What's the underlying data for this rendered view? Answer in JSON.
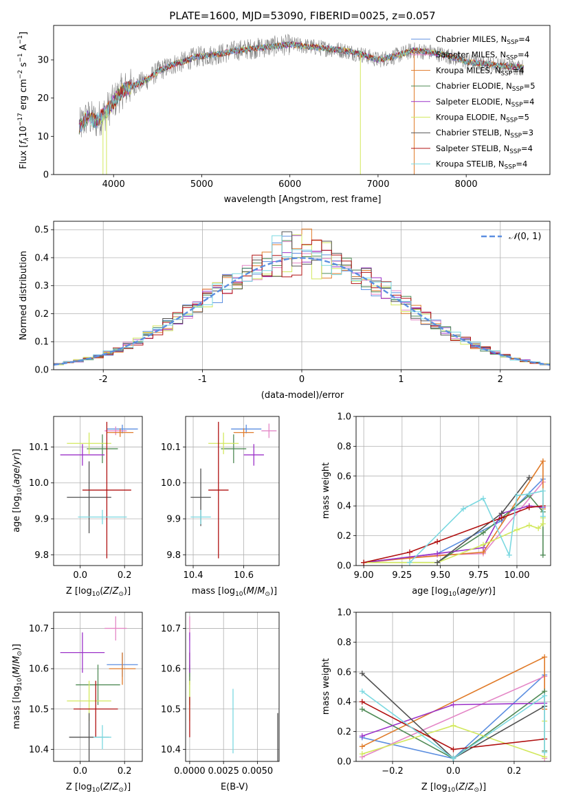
{
  "figure_title": "PLATE=1600, MJD=53090, FIBERID=0025, z=0.057",
  "colors": {
    "chabrier_miles": "#5b8ee0",
    "salpeter_miles": "#e486c6",
    "kroupa_miles": "#e07a28",
    "chabrier_elodie": "#4f8a55",
    "salpeter_elodie": "#9b30c8",
    "kroupa_elodie": "#d2e85c",
    "chabrier_stelib": "#505050",
    "salpeter_stelib": "#b01010",
    "kroupa_stelib": "#7ad8e0",
    "observed": "#808080",
    "gaussian": "#5b8ee0",
    "grid": "#b0b0b0"
  },
  "chart_data": [
    {
      "type": "line",
      "panel": "spectrum",
      "xlabel": "wavelength [Angstrom, rest frame]",
      "ylabel": "Flux [f_λ 10^-17 erg cm^-2 s^-1 A^-1]",
      "xlim": [
        3320,
        8950
      ],
      "ylim": [
        0,
        39
      ],
      "xticks": [
        4000,
        5000,
        6000,
        7000,
        8000
      ],
      "yticks": [
        0,
        10,
        20,
        30
      ],
      "grid": false,
      "legend_position": "top-right",
      "continuum_x": [
        3600,
        3700,
        3800,
        3900,
        4000,
        4100,
        4200,
        4300,
        4400,
        4500,
        4600,
        4700,
        4800,
        4900,
        5000,
        5200,
        5400,
        5600,
        5800,
        6000,
        6200,
        6400,
        6600,
        6800,
        7000,
        7200,
        7400,
        7600,
        7800,
        8000,
        8200,
        8400,
        8650
      ],
      "continuum_y": [
        12,
        15,
        14,
        16,
        19,
        22,
        23,
        24,
        25,
        27,
        28,
        29,
        29.5,
        30.5,
        31,
        31.5,
        32.5,
        33,
        33.5,
        34,
        33.5,
        33,
        32.5,
        31.5,
        30,
        31,
        32.5,
        32,
        31,
        29.5,
        29,
        28.5,
        28
      ],
      "legend": [
        {
          "label": "Chabrier MILES, N",
          "sub": "SSP",
          "suffix": "=4",
          "color_key": "chabrier_miles"
        },
        {
          "label": "Salpeter MILES, N",
          "sub": "SSP",
          "suffix": "=4",
          "color_key": "salpeter_miles"
        },
        {
          "label": "Kroupa MILES, N",
          "sub": "SSP",
          "suffix": "=4",
          "color_key": "kroupa_miles"
        },
        {
          "label": "Chabrier ELODIE, N",
          "sub": "SSP",
          "suffix": "=5",
          "color_key": "chabrier_elodie"
        },
        {
          "label": "Salpeter ELODIE, N",
          "sub": "SSP",
          "suffix": "=4",
          "color_key": "salpeter_elodie"
        },
        {
          "label": "Kroupa ELODIE, N",
          "sub": "SSP",
          "suffix": "=5",
          "color_key": "kroupa_elodie"
        },
        {
          "label": "Chabrier STELIB, N",
          "sub": "SSP",
          "suffix": "=3",
          "color_key": "chabrier_stelib"
        },
        {
          "label": "Salpeter STELIB, N",
          "sub": "SSP",
          "suffix": "=4",
          "color_key": "salpeter_stelib"
        },
        {
          "label": "Kroupa STELIB, N",
          "sub": "SSP",
          "suffix": "=4",
          "color_key": "kroupa_stelib"
        }
      ]
    },
    {
      "type": "histogram",
      "panel": "residuals",
      "xlabel": "(data-model)/error",
      "ylabel": "Normed distribution",
      "xlim": [
        -2.5,
        2.5
      ],
      "ylim": [
        0,
        0.53
      ],
      "xticks": [
        -2,
        -1,
        0,
        1,
        2
      ],
      "yticks": [
        0.0,
        0.1,
        0.2,
        0.3,
        0.4,
        0.5
      ],
      "grid": true,
      "legend_position": "top-right",
      "legend_label": "N(0,1)",
      "bin_width": 0.1,
      "series_order": [
        "chabrier_miles",
        "salpeter_miles",
        "kroupa_miles",
        "chabrier_elodie",
        "salpeter_elodie",
        "kroupa_elodie",
        "chabrier_stelib",
        "salpeter_stelib",
        "kroupa_stelib"
      ]
    },
    {
      "type": "scatter",
      "panel": "age_vs_Z",
      "xlabel": "Z [log10(Z/Z☉)]",
      "ylabel": "age [log10(age/yr)]",
      "xlim": [
        -0.12,
        0.28
      ],
      "ylim": [
        9.77,
        10.185
      ],
      "xticks": [
        0.0,
        0.2
      ],
      "yticks": [
        9.8,
        9.9,
        10.0,
        10.1
      ],
      "grid": true,
      "points": [
        {
          "x": 0.19,
          "xerr": 0.07,
          "y": 10.15,
          "yerr": 0.012,
          "c": "chabrier_miles"
        },
        {
          "x": 0.16,
          "xerr": 0.05,
          "y": 10.145,
          "yerr": 0.012,
          "c": "salpeter_miles"
        },
        {
          "x": 0.18,
          "xerr": 0.06,
          "y": 10.14,
          "yerr": 0.012,
          "c": "kroupa_miles"
        },
        {
          "x": 0.1,
          "xerr": 0.07,
          "y": 10.095,
          "yerr": 0.04,
          "c": "chabrier_elodie"
        },
        {
          "x": 0.01,
          "xerr": 0.1,
          "y": 10.078,
          "yerr": 0.03,
          "c": "salpeter_elodie"
        },
        {
          "x": 0.04,
          "xerr": 0.1,
          "y": 10.11,
          "yerr": 0.03,
          "c": "kroupa_elodie"
        },
        {
          "x": 0.04,
          "xerr": 0.1,
          "y": 9.96,
          "yerr": 0.1,
          "c": "chabrier_stelib"
        },
        {
          "x": 0.12,
          "xerr": 0.11,
          "y": 9.98,
          "yerr": 0.19,
          "c": "salpeter_stelib"
        },
        {
          "x": 0.1,
          "xerr": 0.11,
          "y": 9.905,
          "yerr": 0.02,
          "c": "kroupa_stelib"
        }
      ]
    },
    {
      "type": "scatter",
      "panel": "age_vs_mass",
      "xlabel": "mass [log10(M/M☉)]",
      "ylabel": "",
      "xlim": [
        10.37,
        10.74
      ],
      "ylim": [
        9.77,
        10.185
      ],
      "xticks": [
        10.4,
        10.6
      ],
      "yticks": [
        9.8,
        9.9,
        10.0,
        10.1
      ],
      "grid": true,
      "points": [
        {
          "x": 10.61,
          "xerr": 0.06,
          "y": 10.15,
          "yerr": 0.012,
          "c": "chabrier_miles"
        },
        {
          "x": 10.7,
          "xerr": 0.03,
          "y": 10.145,
          "yerr": 0.02,
          "c": "salpeter_miles"
        },
        {
          "x": 10.6,
          "xerr": 0.04,
          "y": 10.14,
          "yerr": 0.012,
          "c": "kroupa_miles"
        },
        {
          "x": 10.56,
          "xerr": 0.05,
          "y": 10.095,
          "yerr": 0.04,
          "c": "chabrier_elodie"
        },
        {
          "x": 10.64,
          "xerr": 0.04,
          "y": 10.078,
          "yerr": 0.03,
          "c": "salpeter_elodie"
        },
        {
          "x": 10.52,
          "xerr": 0.06,
          "y": 10.11,
          "yerr": 0.03,
          "c": "kroupa_elodie"
        },
        {
          "x": 10.43,
          "xerr": 0.04,
          "y": 9.96,
          "yerr": 0.08,
          "c": "chabrier_stelib"
        },
        {
          "x": 10.5,
          "xerr": 0.04,
          "y": 9.98,
          "yerr": 0.19,
          "c": "salpeter_stelib"
        },
        {
          "x": 10.43,
          "xerr": 0.04,
          "y": 9.905,
          "yerr": 0.02,
          "c": "kroupa_stelib"
        }
      ]
    },
    {
      "type": "line",
      "panel": "weight_vs_age",
      "xlabel": "age [log10(age/yr)]",
      "ylabel": "mass weight",
      "xlim": [
        8.95,
        10.22
      ],
      "ylim": [
        0,
        1.0
      ],
      "xticks": [
        9.0,
        9.25,
        9.5,
        9.75,
        10.0
      ],
      "yticks": [
        0.0,
        0.2,
        0.4,
        0.6,
        0.8,
        1.0
      ],
      "grid": true,
      "series": [
        {
          "c": "chabrier_miles",
          "x": [
            9.0,
            9.48,
            9.9,
            10.17
          ],
          "y": [
            0.02,
            0.08,
            0.3,
            0.58
          ]
        },
        {
          "c": "salpeter_miles",
          "x": [
            9.0,
            9.48,
            9.78,
            10.17
          ],
          "y": [
            0.02,
            0.07,
            0.08,
            0.56
          ]
        },
        {
          "c": "kroupa_miles",
          "x": [
            9.0,
            9.3,
            9.78,
            10.17,
            10.17
          ],
          "y": [
            0.02,
            0.05,
            0.09,
            0.7,
            0.38
          ]
        },
        {
          "c": "chabrier_elodie",
          "x": [
            9.0,
            9.48,
            9.78,
            10.08,
            10.17,
            10.17
          ],
          "y": [
            0.02,
            0.02,
            0.22,
            0.47,
            0.36,
            0.07
          ]
        },
        {
          "c": "salpeter_elodie",
          "x": [
            9.0,
            9.48,
            9.78,
            9.9,
            10.08,
            10.17
          ],
          "y": [
            0.02,
            0.08,
            0.12,
            0.35,
            0.4,
            0.39
          ]
        },
        {
          "c": "kroupa_elodie",
          "x": [
            9.0,
            9.48,
            9.78,
            10.0,
            10.08,
            10.14,
            10.17,
            10.17
          ],
          "y": [
            0.02,
            0.02,
            0.14,
            0.24,
            0.27,
            0.25,
            0.28,
            0.32
          ]
        },
        {
          "c": "chabrier_stelib",
          "x": [
            9.48,
            9.9,
            10.08
          ],
          "y": [
            0.02,
            0.35,
            0.59
          ]
        },
        {
          "c": "salpeter_stelib",
          "x": [
            9.0,
            9.3,
            9.48,
            9.9,
            10.08,
            10.17
          ],
          "y": [
            0.02,
            0.09,
            0.16,
            0.32,
            0.39,
            0.4
          ]
        },
        {
          "c": "kroupa_stelib",
          "x": [
            9.3,
            9.65,
            9.78,
            9.95,
            10.0,
            10.08,
            10.17,
            10.17
          ],
          "y": [
            0.02,
            0.38,
            0.45,
            0.07,
            0.47,
            0.48,
            0.5,
            0.33
          ]
        }
      ]
    },
    {
      "type": "scatter",
      "panel": "mass_vs_Z",
      "xlabel": "Z [log10(Z/Z☉)]",
      "ylabel": "mass [log10(M/M☉)]",
      "xlim": [
        -0.12,
        0.28
      ],
      "ylim": [
        10.37,
        10.74
      ],
      "xticks": [
        0.0,
        0.2
      ],
      "yticks": [
        10.4,
        10.5,
        10.6,
        10.7
      ],
      "grid": true,
      "points": [
        {
          "x": 0.19,
          "xerr": 0.07,
          "y": 10.61,
          "yerr": 0.03,
          "c": "chabrier_miles"
        },
        {
          "x": 0.16,
          "xerr": 0.05,
          "y": 10.7,
          "yerr": 0.03,
          "c": "salpeter_miles"
        },
        {
          "x": 0.19,
          "xerr": 0.06,
          "y": 10.6,
          "yerr": 0.04,
          "c": "kroupa_miles"
        },
        {
          "x": 0.08,
          "xerr": 0.1,
          "y": 10.56,
          "yerr": 0.05,
          "c": "chabrier_elodie"
        },
        {
          "x": 0.01,
          "xerr": 0.1,
          "y": 10.64,
          "yerr": 0.05,
          "c": "salpeter_elodie"
        },
        {
          "x": 0.04,
          "xerr": 0.1,
          "y": 10.52,
          "yerr": 0.05,
          "c": "kroupa_elodie"
        },
        {
          "x": 0.04,
          "xerr": 0.09,
          "y": 10.43,
          "yerr": 0.06,
          "c": "chabrier_stelib"
        },
        {
          "x": 0.07,
          "xerr": 0.1,
          "y": 10.5,
          "yerr": 0.07,
          "c": "salpeter_stelib"
        },
        {
          "x": 0.1,
          "xerr": 0.04,
          "y": 10.43,
          "yerr": 0.03,
          "c": "kroupa_stelib"
        }
      ]
    },
    {
      "type": "scatter",
      "panel": "mass_vs_EBV",
      "xlabel": "E(B-V)",
      "ylabel": "",
      "xlim": [
        -0.0003,
        0.0066
      ],
      "ylim": [
        10.37,
        10.74
      ],
      "xticks": [
        0.0,
        0.0025,
        0.005
      ],
      "xtick_labels": [
        "0.0000",
        "0.0025",
        "0.0050"
      ],
      "yticks": [
        10.4,
        10.5,
        10.6,
        10.7
      ],
      "grid": true,
      "points": [
        {
          "x": 0.0,
          "xerr": 0,
          "y": 10.61,
          "yerr": 0.03,
          "c": "chabrier_miles"
        },
        {
          "x": 0.0,
          "xerr": 0,
          "y": 10.7,
          "yerr": 0.03,
          "c": "salpeter_miles"
        },
        {
          "x": 0.0,
          "xerr": 0,
          "y": 10.6,
          "yerr": 0.04,
          "c": "kroupa_miles"
        },
        {
          "x": 0.0,
          "xerr": 0,
          "y": 10.56,
          "yerr": 0.05,
          "c": "chabrier_elodie"
        },
        {
          "x": 0.0,
          "xerr": 0,
          "y": 10.64,
          "yerr": 0.05,
          "c": "salpeter_elodie"
        },
        {
          "x": 0.0,
          "xerr": 0,
          "y": 10.52,
          "yerr": 0.05,
          "c": "kroupa_elodie"
        },
        {
          "x": 0.0065,
          "xerr": 0,
          "y": 10.43,
          "yerr": 0.06,
          "c": "chabrier_stelib"
        },
        {
          "x": 0.0,
          "xerr": 0,
          "y": 10.48,
          "yerr": 0.05,
          "c": "salpeter_stelib"
        },
        {
          "x": 0.0032,
          "xerr": 0,
          "y": 10.47,
          "yerr": 0.08,
          "c": "kroupa_stelib"
        }
      ]
    },
    {
      "type": "line",
      "panel": "weight_vs_Z",
      "xlabel": "Z [log10(Z/Z☉)]",
      "ylabel": "mass weight",
      "xlim": [
        -0.32,
        0.32
      ],
      "ylim": [
        0,
        1.0
      ],
      "xticks": [
        -0.2,
        0.0,
        0.2
      ],
      "yticks": [
        0.0,
        0.2,
        0.4,
        0.6,
        0.8,
        1.0
      ],
      "grid": true,
      "series": [
        {
          "c": "chabrier_miles",
          "x": [
            -0.3,
            0.0,
            0.3
          ],
          "y": [
            0.16,
            0.02,
            0.58
          ]
        },
        {
          "c": "salpeter_miles",
          "x": [
            -0.3,
            0.3,
            0.3
          ],
          "y": [
            0.03,
            0.57,
            0.02
          ]
        },
        {
          "c": "kroupa_miles",
          "x": [
            -0.3,
            0.3,
            0.3
          ],
          "y": [
            0.1,
            0.7,
            0.35
          ]
        },
        {
          "c": "chabrier_elodie",
          "x": [
            -0.3,
            0.0,
            0.3,
            0.3
          ],
          "y": [
            0.35,
            0.02,
            0.47,
            0.07
          ]
        },
        {
          "c": "salpeter_elodie",
          "x": [
            -0.3,
            0.0,
            0.3
          ],
          "y": [
            0.17,
            0.38,
            0.39
          ]
        },
        {
          "c": "kroupa_elodie",
          "x": [
            -0.3,
            0.0,
            0.3,
            0.3
          ],
          "y": [
            0.05,
            0.24,
            0.03,
            0.27
          ]
        },
        {
          "c": "chabrier_stelib",
          "x": [
            -0.3,
            0.0,
            0.3
          ],
          "y": [
            0.59,
            0.02,
            0.37
          ]
        },
        {
          "c": "salpeter_stelib",
          "x": [
            -0.3,
            0.0,
            0.3
          ],
          "y": [
            0.4,
            0.08,
            0.15
          ]
        },
        {
          "c": "kroupa_stelib",
          "x": [
            -0.3,
            0.0,
            0.3,
            0.3
          ],
          "y": [
            0.47,
            0.02,
            0.44,
            0.06
          ]
        }
      ]
    }
  ]
}
